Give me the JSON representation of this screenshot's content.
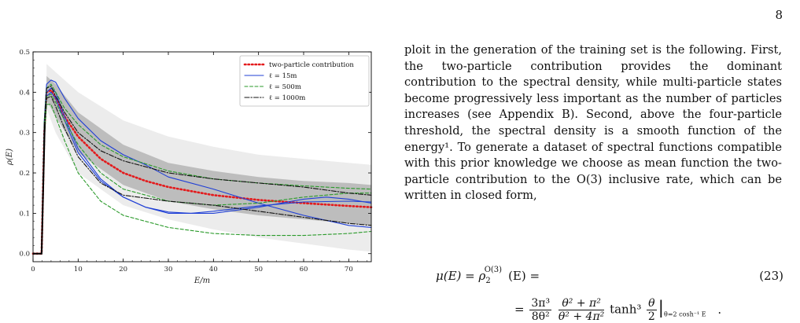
{
  "page_number": "8",
  "figure": {
    "chart_data": {
      "type": "line",
      "xlabel": "E/m",
      "ylabel": "ρ(E)",
      "xlim": [
        0,
        75
      ],
      "ylim": [
        -0.02,
        0.5
      ],
      "x_ticks": [
        0,
        10,
        20,
        30,
        40,
        50,
        60,
        70
      ],
      "y_ticks": [
        0.0,
        0.1,
        0.2,
        0.3,
        0.4,
        0.5
      ],
      "x_tick_labels": [
        "0",
        "10",
        "20",
        "30",
        "40",
        "50",
        "60",
        "70"
      ],
      "y_tick_labels": [
        "0.0",
        "0.1",
        "0.2",
        "0.3",
        "0.4",
        "0.5"
      ],
      "legend_position": "top-right",
      "legend": [
        {
          "label": "two-particle contribution",
          "color": "#e31a1c",
          "style": "dotted"
        },
        {
          "label": "ℓ = 15m",
          "color": "#1f3fd6",
          "style": "solid"
        },
        {
          "label": "ℓ = 500m",
          "color": "#2a9a2a",
          "style": "dashed"
        },
        {
          "label": "ℓ = 1000m",
          "color": "#111111",
          "style": "dashdot"
        }
      ],
      "bands": {
        "outer_upper": [
          [
            3,
            0.47
          ],
          [
            5,
            0.45
          ],
          [
            10,
            0.4
          ],
          [
            20,
            0.33
          ],
          [
            30,
            0.29
          ],
          [
            40,
            0.265
          ],
          [
            50,
            0.245
          ],
          [
            60,
            0.235
          ],
          [
            70,
            0.225
          ],
          [
            75,
            0.22
          ]
        ],
        "outer_lower": [
          [
            3,
            0.36
          ],
          [
            5,
            0.3
          ],
          [
            10,
            0.2
          ],
          [
            20,
            0.12
          ],
          [
            30,
            0.085
          ],
          [
            40,
            0.06
          ],
          [
            50,
            0.04
          ],
          [
            60,
            0.025
          ],
          [
            70,
            0.01
          ],
          [
            75,
            0.005
          ]
        ],
        "inner_upper": [
          [
            3,
            0.44
          ],
          [
            5,
            0.42
          ],
          [
            10,
            0.35
          ],
          [
            20,
            0.27
          ],
          [
            30,
            0.225
          ],
          [
            40,
            0.205
          ],
          [
            50,
            0.19
          ],
          [
            60,
            0.18
          ],
          [
            70,
            0.175
          ],
          [
            75,
            0.17
          ]
        ],
        "inner_lower": [
          [
            3,
            0.38
          ],
          [
            5,
            0.34
          ],
          [
            10,
            0.25
          ],
          [
            20,
            0.17
          ],
          [
            30,
            0.13
          ],
          [
            40,
            0.11
          ],
          [
            50,
            0.095
          ],
          [
            60,
            0.085
          ],
          [
            70,
            0.075
          ],
          [
            75,
            0.07
          ]
        ]
      },
      "series": [
        {
          "color": "#e31a1c",
          "style": "dotted",
          "x": [
            0,
            1.9,
            2.5,
            3,
            4,
            5,
            7,
            10,
            15,
            20,
            25,
            30,
            40,
            50,
            60,
            70,
            75
          ],
          "y": [
            0,
            0,
            0.3,
            0.4,
            0.405,
            0.385,
            0.34,
            0.29,
            0.235,
            0.2,
            0.18,
            0.165,
            0.145,
            0.133,
            0.125,
            0.118,
            0.115
          ]
        },
        {
          "color": "#1f3fd6",
          "style": "solid",
          "x": [
            0,
            1.9,
            2.5,
            3,
            4,
            5,
            7,
            10,
            15,
            20,
            25,
            30,
            40,
            50,
            60,
            70,
            75
          ],
          "y": [
            0,
            0,
            0.33,
            0.42,
            0.43,
            0.425,
            0.385,
            0.335,
            0.28,
            0.245,
            0.22,
            0.19,
            0.16,
            0.125,
            0.095,
            0.07,
            0.065
          ]
        },
        {
          "color": "#1f3fd6",
          "style": "solid",
          "x": [
            0,
            1.9,
            2.5,
            3,
            4,
            5,
            7,
            10,
            15,
            20,
            25,
            30,
            40,
            50,
            60,
            65,
            70,
            75
          ],
          "y": [
            0,
            0,
            0.3,
            0.4,
            0.41,
            0.4,
            0.34,
            0.26,
            0.185,
            0.14,
            0.115,
            0.1,
            0.1,
            0.115,
            0.135,
            0.14,
            0.135,
            0.125
          ]
        },
        {
          "color": "#1f3fd6",
          "style": "solid",
          "x": [
            0,
            1.9,
            2.5,
            3,
            4,
            5,
            7,
            10,
            15,
            20,
            25,
            30,
            35,
            40,
            50,
            60,
            70,
            75
          ],
          "y": [
            0,
            0,
            0.29,
            0.39,
            0.4,
            0.385,
            0.33,
            0.25,
            0.18,
            0.14,
            0.115,
            0.103,
            0.1,
            0.105,
            0.118,
            0.128,
            0.13,
            0.128
          ]
        },
        {
          "color": "#2a9a2a",
          "style": "dashed",
          "x": [
            0,
            1.9,
            2.5,
            3,
            4,
            5,
            7,
            10,
            15,
            20,
            30,
            40,
            50,
            60,
            70,
            75
          ],
          "y": [
            0,
            0,
            0.33,
            0.41,
            0.42,
            0.4,
            0.36,
            0.32,
            0.27,
            0.24,
            0.205,
            0.185,
            0.175,
            0.168,
            0.162,
            0.16
          ]
        },
        {
          "color": "#2a9a2a",
          "style": "dashed",
          "x": [
            0,
            1.9,
            2.5,
            3,
            4,
            5,
            7,
            10,
            15,
            20,
            30,
            40,
            50,
            60,
            70,
            75
          ],
          "y": [
            0,
            0,
            0.28,
            0.37,
            0.37,
            0.34,
            0.28,
            0.2,
            0.13,
            0.095,
            0.065,
            0.05,
            0.045,
            0.045,
            0.05,
            0.055
          ]
        },
        {
          "color": "#2a9a2a",
          "style": "dashed",
          "x": [
            0,
            1.9,
            2.5,
            3,
            4,
            5,
            7,
            10,
            15,
            20,
            30,
            40,
            50,
            60,
            70,
            75
          ],
          "y": [
            0,
            0,
            0.3,
            0.39,
            0.395,
            0.375,
            0.33,
            0.27,
            0.2,
            0.16,
            0.13,
            0.12,
            0.125,
            0.14,
            0.15,
            0.15
          ]
        },
        {
          "color": "#111111",
          "style": "dashdot",
          "x": [
            0,
            1.9,
            2.5,
            3,
            4,
            5,
            7,
            10,
            15,
            20,
            30,
            40,
            50,
            60,
            70,
            75
          ],
          "y": [
            0,
            0,
            0.32,
            0.41,
            0.415,
            0.39,
            0.35,
            0.3,
            0.255,
            0.23,
            0.2,
            0.185,
            0.175,
            0.165,
            0.15,
            0.145
          ]
        },
        {
          "color": "#111111",
          "style": "dashdot",
          "x": [
            0,
            1.9,
            2.5,
            3,
            4,
            5,
            7,
            10,
            15,
            20,
            30,
            40,
            50,
            60,
            70,
            75
          ],
          "y": [
            0,
            0,
            0.29,
            0.385,
            0.39,
            0.365,
            0.31,
            0.24,
            0.175,
            0.145,
            0.13,
            0.12,
            0.105,
            0.09,
            0.075,
            0.07
          ]
        }
      ]
    }
  },
  "body_text": "ploit in the generation of the training set is the following. First, the two-particle contribution provides the dominant contribution to the spectral density, while multi-particle states become progressively less important as the number of particles increases (see Appendix B). Second, above the four-particle threshold, the spectral density is a smooth function of the energy¹. To generate a dataset of spectral functions compatible with this prior knowledge we choose as mean function the two-particle contribution to the O(3) inclusive rate, which can be written in closed form,",
  "equation": {
    "lhs": "μ(E) = ρ",
    "lhs_sub": "2",
    "lhs_sup": "O(3)",
    "lhs_tail": "(E) =",
    "number": "(23)",
    "rhs_prefix": "=",
    "frac1_num": "3π³",
    "frac1_den": "8θ²",
    "frac2_num": "θ² + π²",
    "frac2_den": "θ² + 4π²",
    "tanh": "tanh³",
    "frac3_num": "θ",
    "frac3_den": "2",
    "eval_bar": "|",
    "eval_sub": "θ=2 cosh⁻¹ E",
    "period": "."
  }
}
